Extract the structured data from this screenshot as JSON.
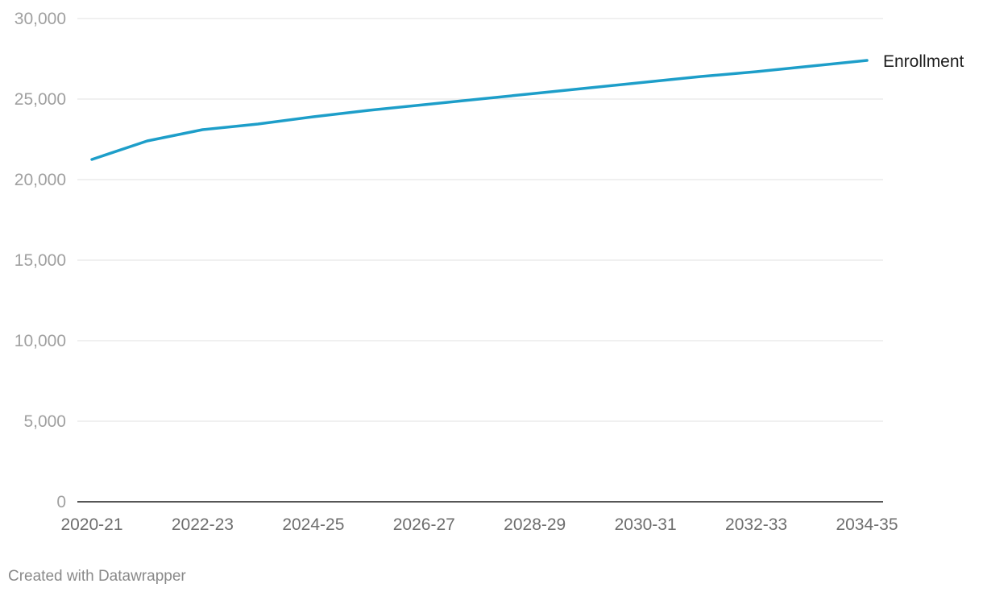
{
  "chart_data": {
    "type": "line",
    "title": "",
    "xlabel": "",
    "ylabel": "",
    "x": [
      "2020-21",
      "2021-22",
      "2022-23",
      "2023-24",
      "2024-25",
      "2025-26",
      "2026-27",
      "2027-28",
      "2028-29",
      "2029-30",
      "2030-31",
      "2031-32",
      "2032-33",
      "2033-34",
      "2034-35"
    ],
    "x_tick_labels": [
      "2020-21",
      "2022-23",
      "2024-25",
      "2026-27",
      "2028-29",
      "2030-31",
      "2032-33",
      "2034-35"
    ],
    "y_tick_labels": [
      "0",
      "5,000",
      "10,000",
      "15,000",
      "20,000",
      "25,000",
      "30,000"
    ],
    "y_ticks": [
      0,
      5000,
      10000,
      15000,
      20000,
      25000,
      30000
    ],
    "ylim": [
      0,
      30000
    ],
    "grid": true,
    "legend": "direct label at end of line",
    "series": [
      {
        "name": "Enrollment",
        "color": "#1d9ec9",
        "values": [
          21250,
          22400,
          23100,
          23450,
          23900,
          24300,
          24650,
          25000,
          25350,
          25700,
          26050,
          26400,
          26700,
          27050,
          27400
        ]
      }
    ]
  },
  "footer": {
    "credit": "Created with Datawrapper"
  }
}
